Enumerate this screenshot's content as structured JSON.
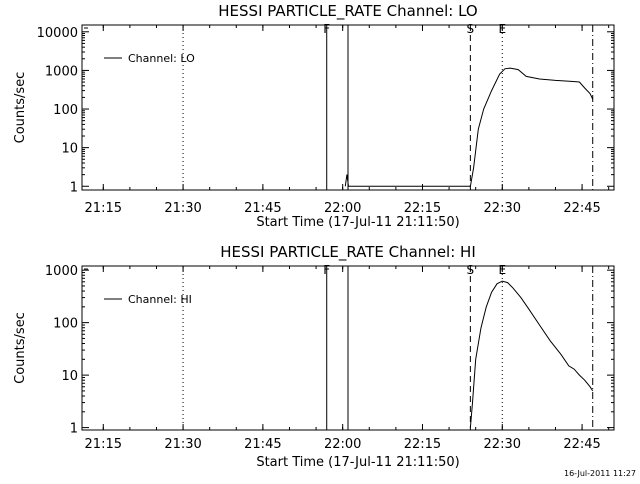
{
  "timestamp": "16-Jul-2011 11:27",
  "chart_data": [
    {
      "type": "line",
      "title": "HESSI PARTICLE_RATE Channel: LO",
      "xlabel": "Start Time (17-Jul-11 21:11:50)",
      "ylabel": "Counts/sec",
      "yscale": "log",
      "xlim": [
        "21:11",
        "22:51"
      ],
      "ylim": [
        0.8,
        15000
      ],
      "x_ticks": [
        "21:15",
        "21:30",
        "21:45",
        "22:00",
        "22:15",
        "22:30",
        "22:45"
      ],
      "y_ticks": [
        "1",
        "10",
        "100",
        "1000",
        "10000"
      ],
      "y_tick_values": [
        1,
        10,
        100,
        1000,
        10000
      ],
      "legend": [
        "Channel: LO"
      ],
      "legend_position": "top-left",
      "flags": [
        {
          "label": "F",
          "time": "21:57",
          "style": "solid"
        },
        {
          "label": "S",
          "time": "22:24",
          "style": "dashed"
        },
        {
          "label": "E",
          "time": "22:30",
          "style": "dotted"
        },
        {
          "label": "",
          "time": "21:30",
          "style": "dotted"
        },
        {
          "label": "",
          "time": "22:47",
          "style": "dashdot"
        }
      ],
      "gap": {
        "start": "21:57",
        "end": "21:61"
      },
      "series": [
        {
          "name": "Channel: LO",
          "x": [
            "22:00.5",
            "22:00.8",
            "22:01.1",
            "22:24.0",
            "22:24.6",
            "22:25.5",
            "22:26.5",
            "22:28.0",
            "22:29.5",
            "22:30.5",
            "22:31.5",
            "22:33.0",
            "22:34.5",
            "22:37.0",
            "22:40.0",
            "22:43.0",
            "22:44.5",
            "22:45.5",
            "22:46.5",
            "22:47.0"
          ],
          "y": [
            1,
            2,
            1,
            1,
            3,
            30,
            100,
            300,
            800,
            1100,
            1150,
            1050,
            700,
            600,
            550,
            520,
            500,
            350,
            250,
            180
          ]
        }
      ]
    },
    {
      "type": "line",
      "title": "HESSI PARTICLE_RATE Channel: HI",
      "xlabel": "Start Time (17-Jul-11 21:11:50)",
      "ylabel": "Counts/sec",
      "yscale": "log",
      "xlim": [
        "21:11",
        "22:51"
      ],
      "ylim": [
        0.9,
        1200
      ],
      "x_ticks": [
        "21:15",
        "21:30",
        "21:45",
        "22:00",
        "22:15",
        "22:30",
        "22:45"
      ],
      "y_ticks": [
        "1",
        "10",
        "100",
        "1000"
      ],
      "y_tick_values": [
        1,
        10,
        100,
        1000
      ],
      "legend": [
        "Channel: HI"
      ],
      "legend_position": "top-left",
      "flags": [
        {
          "label": "F",
          "time": "21:57",
          "style": "solid"
        },
        {
          "label": "S",
          "time": "22:24",
          "style": "dashed"
        },
        {
          "label": "E",
          "time": "22:30",
          "style": "dotted"
        },
        {
          "label": "",
          "time": "21:30",
          "style": "dotted"
        },
        {
          "label": "",
          "time": "22:47",
          "style": "dashdot"
        }
      ],
      "gap": {
        "start": "21:57",
        "end": "21:61"
      },
      "series": [
        {
          "name": "Channel: HI",
          "x": [
            "22:24.0",
            "22:24.4",
            "22:25.0",
            "22:26.0",
            "22:27.0",
            "22:28.0",
            "22:29.0",
            "22:30.0",
            "22:31.0",
            "22:32.0",
            "22:33.5",
            "22:35.0",
            "22:37.0",
            "22:39.0",
            "22:41.0",
            "22:42.5",
            "22:43.5",
            "22:44.5",
            "22:45.5",
            "22:46.5",
            "22:47.0"
          ],
          "y": [
            1,
            3,
            20,
            80,
            200,
            380,
            550,
            620,
            580,
            460,
            300,
            180,
            90,
            45,
            25,
            15,
            13,
            10,
            8,
            6,
            5
          ]
        }
      ]
    }
  ]
}
